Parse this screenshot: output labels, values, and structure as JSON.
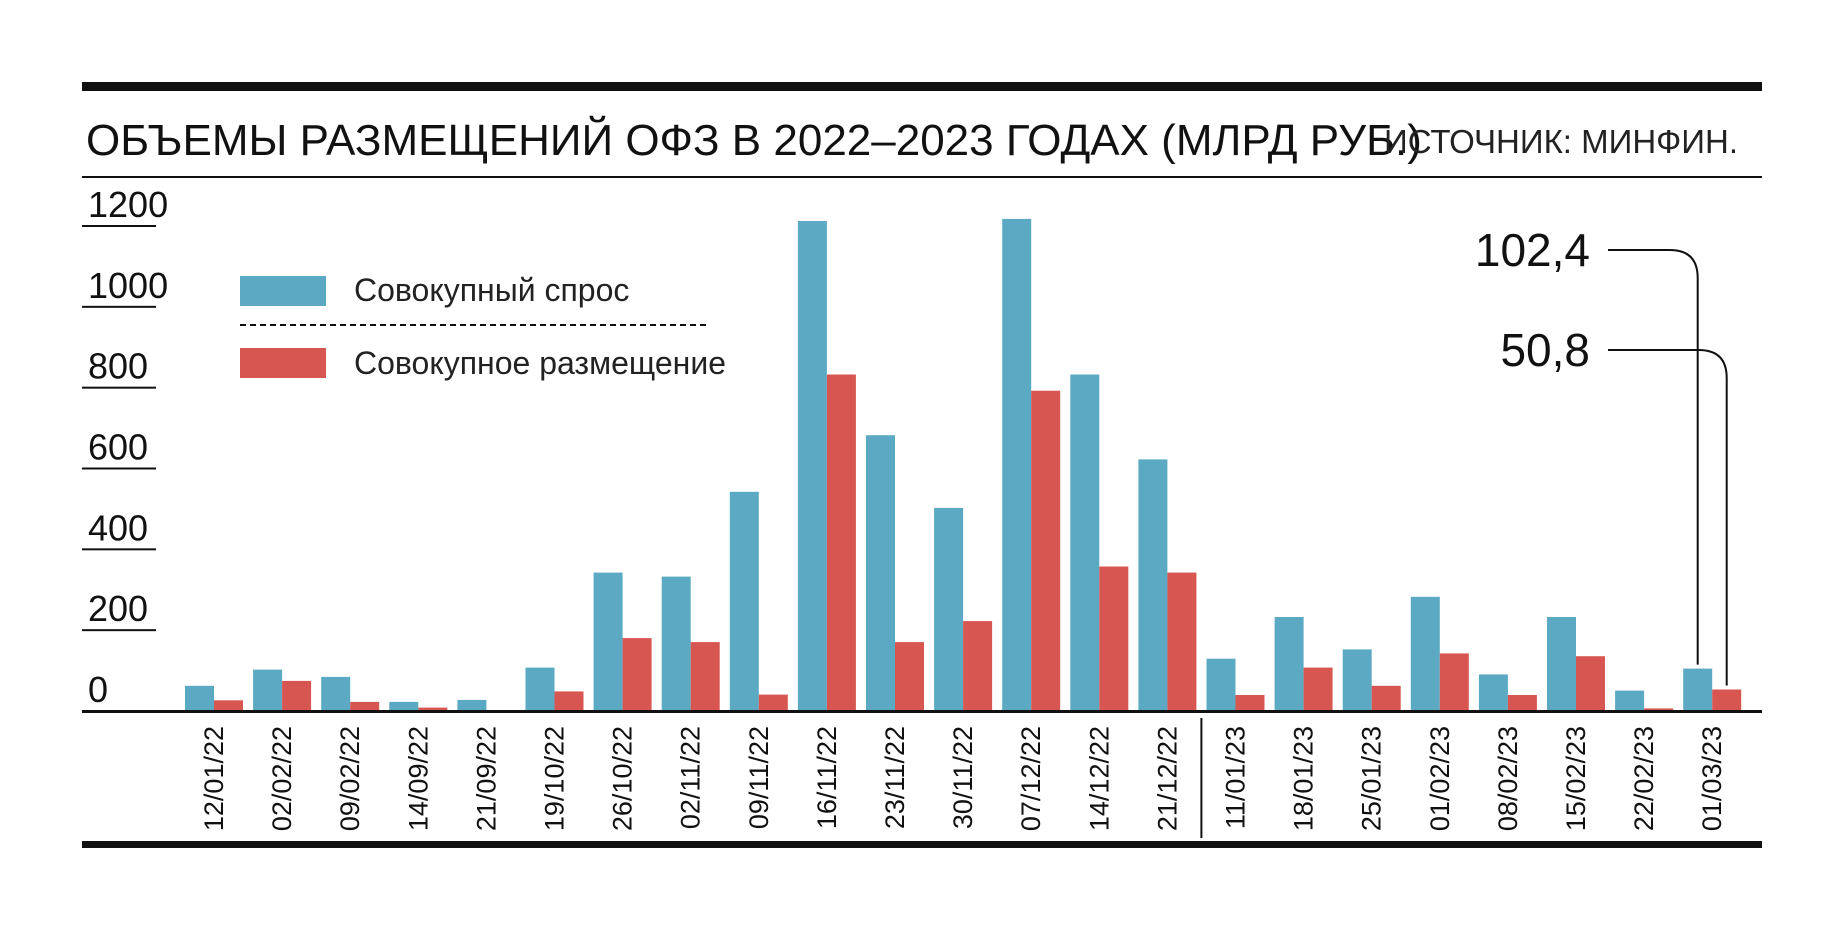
{
  "chart_data": {
    "type": "bar",
    "title": "ОБЪЕМЫ РАЗМЕЩЕНИЙ ОФЗ В 2022–2023 ГОДАХ (МЛРД РУБ.)",
    "source": "ИСТОЧНИК: МИНФИН.",
    "ylim": [
      0,
      1200
    ],
    "yticks": [
      "1200",
      "1000",
      "800",
      "600",
      "400",
      "200",
      "0"
    ],
    "ytick_values": [
      1200,
      1000,
      800,
      600,
      400,
      200,
      0
    ],
    "grid": false,
    "legend_position": "top-left",
    "categories": [
      "12/01/22",
      "02/02/22",
      "09/02/22",
      "14/09/22",
      "21/09/22",
      "19/10/22",
      "26/10/22",
      "02/11/22",
      "09/11/22",
      "16/11/22",
      "23/11/22",
      "30/11/22",
      "07/12/22",
      "14/12/22",
      "21/12/22",
      "11/01/23",
      "18/01/23",
      "25/01/23",
      "01/02/23",
      "08/02/23",
      "15/02/23",
      "22/02/23",
      "01/03/23"
    ],
    "series": [
      {
        "name": "Совокупный спрос",
        "color": "#5ba9c2",
        "values": [
          60,
          100,
          82,
          20,
          25,
          105,
          340,
          330,
          540,
          1210,
          680,
          500,
          1215,
          830,
          620,
          127,
          230,
          150,
          280,
          88,
          230,
          48,
          102.4
        ]
      },
      {
        "name": "Совокупное размещение",
        "color": "#d85652",
        "values": [
          24,
          72,
          20,
          6,
          0,
          46,
          178,
          168,
          38,
          830,
          168,
          220,
          790,
          355,
          340,
          37,
          105,
          60,
          140,
          37,
          133,
          4,
          50.8
        ]
      }
    ],
    "annotations": [
      {
        "text": "102,4",
        "category": "01/03/23",
        "series": "Совокупный спрос"
      },
      {
        "text": "50,8",
        "category": "01/03/23",
        "series": "Совокупное размещение"
      }
    ],
    "year_separator_after": "21/12/22"
  }
}
